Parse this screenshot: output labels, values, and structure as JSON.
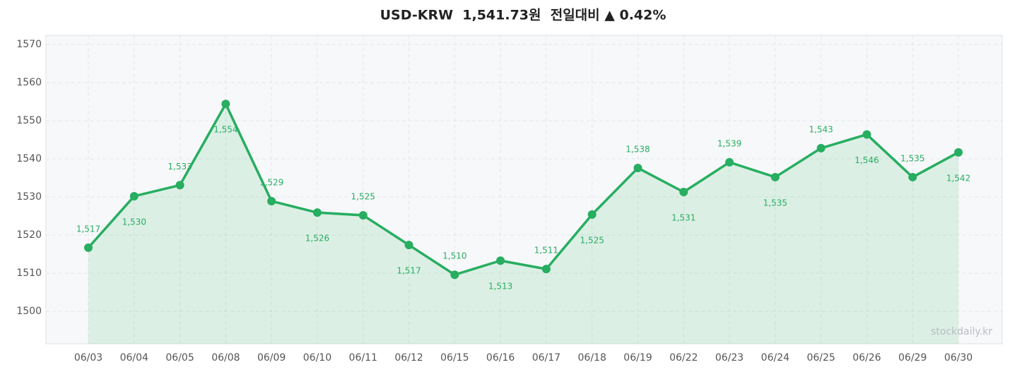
{
  "chart_data": {
    "type": "line",
    "title": "USD-KRW  1,541.73원  전일대비 ▲ 0.42%",
    "watermark": "stockdaily.kr",
    "categories": [
      "06/03",
      "06/04",
      "06/05",
      "06/08",
      "06/09",
      "06/10",
      "06/11",
      "06/12",
      "06/15",
      "06/16",
      "06/17",
      "06/18",
      "06/19",
      "06/22",
      "06/23",
      "06/24",
      "06/25",
      "06/26",
      "06/29",
      "06/30"
    ],
    "series": [
      {
        "name": "USD-KRW",
        "color": "#27ae60",
        "values": [
          1516.7,
          1530.2,
          1533.1,
          1554.4,
          1528.9,
          1525.9,
          1525.2,
          1517.4,
          1509.6,
          1513.3,
          1511.1,
          1525.4,
          1537.6,
          1531.3,
          1539.1,
          1535.2,
          1542.8,
          1546.4,
          1535.2,
          1541.7
        ],
        "value_labels": [
          "1,517",
          "1,530",
          "1,533",
          "1,554",
          "1,529",
          "1,526",
          "1,525",
          "1,517",
          "1,510",
          "1,513",
          "1,511",
          "1,525",
          "1,538",
          "1,531",
          "1,539",
          "1,535",
          "1,543",
          "1,546",
          "1,535",
          "1,542"
        ]
      }
    ],
    "ylim": [
      1491.5,
      1572.4
    ],
    "yticks": [
      1500,
      1510,
      1520,
      1530,
      1540,
      1550,
      1560,
      1570
    ],
    "grid": true
  }
}
